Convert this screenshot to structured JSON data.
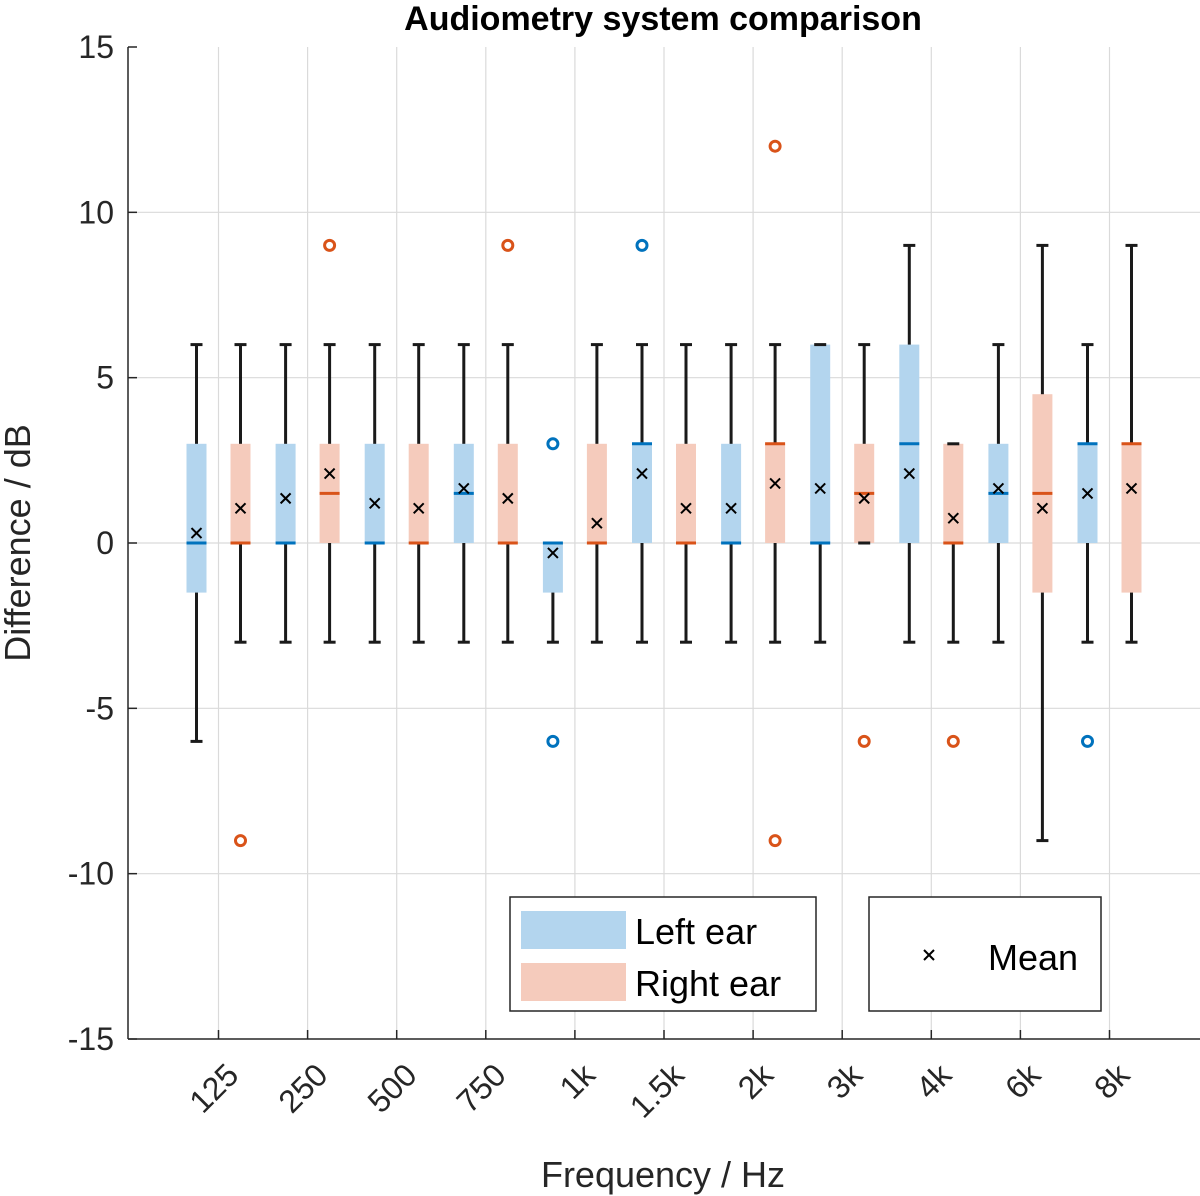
{
  "chart_data": {
    "type": "box",
    "title": "Audiometry system comparison",
    "xlabel": "Frequency / Hz",
    "ylabel": "Difference / dB",
    "ylim": [
      -15,
      15
    ],
    "yticks": [
      "-15",
      "-10",
      "-5",
      "0",
      "5",
      "10",
      "15"
    ],
    "categories": [
      "125",
      "250",
      "500",
      "750",
      "1k",
      "1.5k",
      "2k",
      "3k",
      "4k",
      "6k",
      "8k"
    ],
    "grid": true,
    "legend_position": "bottom",
    "series": [
      {
        "name": "Left ear",
        "box_color": "#b3d5ee",
        "median_color": "#0072bd",
        "outlier_color": "#0072bd",
        "boxes": [
          {
            "q1": -1.5,
            "median": 0,
            "q3": 3,
            "whisker_low": -6,
            "whisker_high": 6,
            "mean": 0.3,
            "outliers": []
          },
          {
            "q1": 0,
            "median": 0,
            "q3": 3,
            "whisker_low": -3,
            "whisker_high": 6,
            "mean": 1.35,
            "outliers": []
          },
          {
            "q1": 0,
            "median": 0,
            "q3": 3,
            "whisker_low": -3,
            "whisker_high": 6,
            "mean": 1.2,
            "outliers": []
          },
          {
            "q1": 0,
            "median": 1.5,
            "q3": 3,
            "whisker_low": -3,
            "whisker_high": 6,
            "mean": 1.65,
            "outliers": []
          },
          {
            "q1": -1.5,
            "median": 0,
            "q3": 0,
            "whisker_low": -3,
            "whisker_high": 0,
            "mean": -0.3,
            "outliers": [
              3,
              -6
            ]
          },
          {
            "q1": 0,
            "median": 3,
            "q3": 3,
            "whisker_low": -3,
            "whisker_high": 6,
            "mean": 2.1,
            "outliers": [
              9
            ]
          },
          {
            "q1": 0,
            "median": 0,
            "q3": 3,
            "whisker_low": -3,
            "whisker_high": 6,
            "mean": 1.05,
            "outliers": []
          },
          {
            "q1": 0,
            "median": 0,
            "q3": 6,
            "whisker_low": -3,
            "whisker_high": 6,
            "mean": 1.65,
            "outliers": []
          },
          {
            "q1": 0,
            "median": 3,
            "q3": 6,
            "whisker_low": -3,
            "whisker_high": 9,
            "mean": 2.1,
            "outliers": []
          },
          {
            "q1": 0,
            "median": 1.5,
            "q3": 3,
            "whisker_low": -3,
            "whisker_high": 6,
            "mean": 1.65,
            "outliers": []
          },
          {
            "q1": 0,
            "median": 3,
            "q3": 3,
            "whisker_low": -3,
            "whisker_high": 6,
            "mean": 1.5,
            "outliers": [
              -6
            ]
          }
        ]
      },
      {
        "name": "Right ear",
        "box_color": "#f5cbbc",
        "median_color": "#d95319",
        "outlier_color": "#d95319",
        "boxes": [
          {
            "q1": 0,
            "median": 0,
            "q3": 3,
            "whisker_low": -3,
            "whisker_high": 6,
            "mean": 1.05,
            "outliers": [
              -9
            ]
          },
          {
            "q1": 0,
            "median": 1.5,
            "q3": 3,
            "whisker_low": -3,
            "whisker_high": 6,
            "mean": 2.1,
            "outliers": [
              9
            ]
          },
          {
            "q1": 0,
            "median": 0,
            "q3": 3,
            "whisker_low": -3,
            "whisker_high": 6,
            "mean": 1.05,
            "outliers": []
          },
          {
            "q1": 0,
            "median": 0,
            "q3": 3,
            "whisker_low": -3,
            "whisker_high": 6,
            "mean": 1.35,
            "outliers": [
              9
            ]
          },
          {
            "q1": 0,
            "median": 0,
            "q3": 3,
            "whisker_low": -3,
            "whisker_high": 6,
            "mean": 0.6,
            "outliers": []
          },
          {
            "q1": 0,
            "median": 0,
            "q3": 3,
            "whisker_low": -3,
            "whisker_high": 6,
            "mean": 1.05,
            "outliers": []
          },
          {
            "q1": 0,
            "median": 3,
            "q3": 3,
            "whisker_low": -3,
            "whisker_high": 6,
            "mean": 1.8,
            "outliers": [
              12,
              -9
            ]
          },
          {
            "q1": 0,
            "median": 1.5,
            "q3": 3,
            "whisker_low": 0,
            "whisker_high": 6,
            "mean": 1.35,
            "outliers": [
              -6
            ]
          },
          {
            "q1": 0,
            "median": 0,
            "q3": 3,
            "whisker_low": -3,
            "whisker_high": 3,
            "mean": 0.75,
            "outliers": [
              -6
            ]
          },
          {
            "q1": -1.5,
            "median": 1.5,
            "q3": 4.5,
            "whisker_low": -9,
            "whisker_high": 9,
            "mean": 1.05,
            "outliers": []
          },
          {
            "q1": -1.5,
            "median": 3,
            "q3": 3,
            "whisker_low": -3,
            "whisker_high": 9,
            "mean": 1.65,
            "outliers": []
          }
        ]
      }
    ],
    "legend": {
      "entries": [
        "Left ear",
        "Right ear"
      ],
      "mean_label": "Mean"
    }
  }
}
